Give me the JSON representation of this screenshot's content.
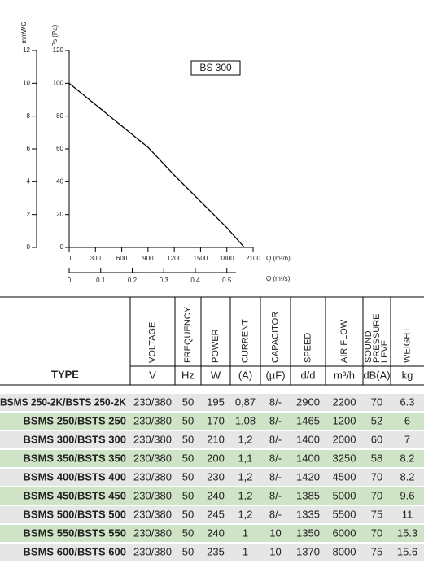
{
  "chart_data": {
    "type": "line",
    "title": "BS 300",
    "y_label": "Ps (Pa)",
    "y2_label": "mmWG",
    "x_label": "Q (m³/h)",
    "x2_label": "Q (m³/s)",
    "x": [
      0,
      300,
      600,
      900,
      1200,
      1500,
      1800,
      2000
    ],
    "series": [
      {
        "color": "#000000",
        "values": [
          100,
          87,
          74,
          61,
          44,
          28,
          12,
          0
        ]
      }
    ],
    "xlim": [
      0,
      2100
    ],
    "xticks": [
      0,
      300,
      600,
      900,
      1200,
      1500,
      1800,
      2100
    ],
    "x2lim": [
      0,
      0.5833
    ],
    "x2ticks": [
      0,
      0.1,
      0.2,
      0.3,
      0.4,
      0.5
    ],
    "ylim": [
      0,
      120
    ],
    "yticks": [
      0,
      20,
      40,
      60,
      80,
      100,
      120
    ],
    "y2lim": [
      0,
      12
    ],
    "y2ticks": [
      0,
      2,
      4,
      6,
      8,
      10,
      12
    ],
    "grid": false
  },
  "table": {
    "headers": [
      "TYPE",
      "VOLTAGE",
      "FREQUENCY",
      "POWER",
      "CURRENT",
      "CAPACITOR",
      "SPEED",
      "AIR FLOW",
      [
        "SOUND",
        "PRESSURE",
        "LEVEL"
      ],
      "WEIGHT"
    ],
    "units": [
      "V",
      "Hz",
      "W",
      "(A)",
      "(µF)",
      "d/d",
      "m³/h",
      "dB(A)",
      "kg"
    ],
    "rows": [
      [
        "BSMS 250-2K/BSTS 250-2K",
        "230/380",
        "50",
        "195",
        "0,87",
        "8/-",
        "2900",
        "2200",
        "70",
        "6.3"
      ],
      [
        "BSMS 250/BSTS 250",
        "230/380",
        "50",
        "170",
        "1,08",
        "8/-",
        "1465",
        "1200",
        "52",
        "6"
      ],
      [
        "BSMS 300/BSTS 300",
        "230/380",
        "50",
        "210",
        "1,2",
        "8/-",
        "1400",
        "2000",
        "60",
        "7"
      ],
      [
        "BSMS 350/BSTS 350",
        "230/380",
        "50",
        "200",
        "1,1",
        "8/-",
        "1400",
        "3250",
        "58",
        "8.2"
      ],
      [
        "BSMS 400/BSTS 400",
        "230/380",
        "50",
        "230",
        "1,2",
        "8/-",
        "1420",
        "4500",
        "70",
        "8.2"
      ],
      [
        "BSMS 450/BSTS 450",
        "230/380",
        "50",
        "240",
        "1,2",
        "8/-",
        "1385",
        "5000",
        "70",
        "9.6"
      ],
      [
        "BSMS 500/BSTS 500",
        "230/380",
        "50",
        "245",
        "1,2",
        "8/-",
        "1335",
        "5500",
        "75",
        "11"
      ],
      [
        "BSMS 550/BSTS 550",
        "230/380",
        "50",
        "240",
        "1",
        "10",
        "1350",
        "6000",
        "70",
        "15.3"
      ],
      [
        "BSMS 600/BSTS 600",
        "230/380",
        "50",
        "235",
        "1",
        "10",
        "1370",
        "8000",
        "75",
        "15.6"
      ]
    ]
  }
}
